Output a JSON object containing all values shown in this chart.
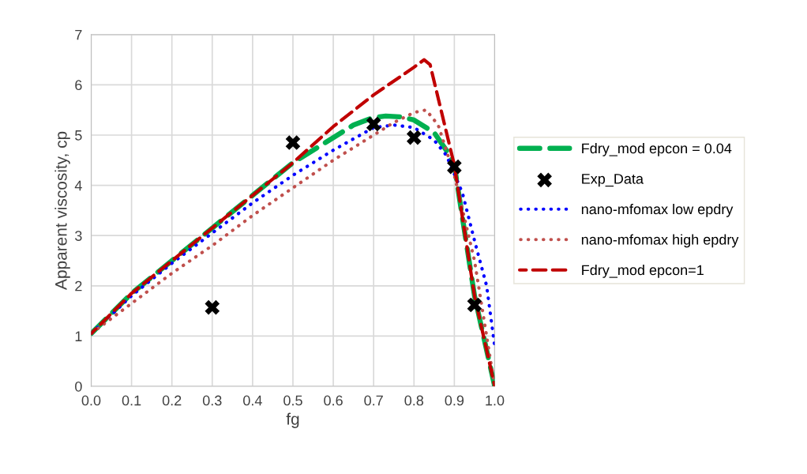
{
  "chart_data": {
    "type": "line",
    "xlabel": "fg",
    "ylabel": "Apparent viscosity, cp",
    "xlim": [
      0,
      1
    ],
    "ylim": [
      0,
      7
    ],
    "xticks": [
      {
        "value": 0,
        "label": "0.0"
      },
      {
        "value": 0.1,
        "label": "0.1"
      },
      {
        "value": 0.2,
        "label": "0.2"
      },
      {
        "value": 0.3,
        "label": "0.3"
      },
      {
        "value": 0.4,
        "label": "0.4"
      },
      {
        "value": 0.5,
        "label": "0.5"
      },
      {
        "value": 0.6,
        "label": "0.6"
      },
      {
        "value": 0.7,
        "label": "0.7"
      },
      {
        "value": 0.8,
        "label": "0.8"
      },
      {
        "value": 0.9,
        "label": "0.9"
      },
      {
        "value": 1,
        "label": "1.0"
      }
    ],
    "yticks": [
      0,
      1,
      2,
      3,
      4,
      5,
      6,
      7
    ],
    "grid": true,
    "legend": "right",
    "series": [
      {
        "name": "Fdry_mod epcon = 0.04",
        "color": "#00b050",
        "line_style": "dashed",
        "marker": "none",
        "x": [
          0,
          0.1,
          0.2,
          0.3,
          0.4,
          0.5,
          0.6,
          0.65,
          0.7,
          0.73,
          0.77,
          0.8,
          0.85,
          0.88,
          0.9,
          0.95,
          1.0
        ],
        "values": [
          1.05,
          1.85,
          2.5,
          3.15,
          3.8,
          4.45,
          4.95,
          5.2,
          5.35,
          5.38,
          5.36,
          5.3,
          5.05,
          4.7,
          4.4,
          1.8,
          0
        ]
      },
      {
        "name": "Exp_Data",
        "type": "scatter",
        "color": "#000000",
        "marker": "cross",
        "x": [
          0.3,
          0.5,
          0.7,
          0.8,
          0.9,
          0.95
        ],
        "values": [
          1.57,
          4.85,
          5.22,
          4.95,
          4.37,
          1.62
        ]
      },
      {
        "name": "nano-mfomax low epdry",
        "color": "#0000ff",
        "line_style": "dotted",
        "marker": "none",
        "x": [
          0,
          0.1,
          0.2,
          0.3,
          0.4,
          0.5,
          0.6,
          0.7,
          0.75,
          0.8,
          0.85,
          0.88,
          0.92,
          0.95,
          0.98,
          1.0
        ],
        "values": [
          1.05,
          1.8,
          2.45,
          3.05,
          3.65,
          4.2,
          4.7,
          5.15,
          5.2,
          5.15,
          4.9,
          4.6,
          3.85,
          2.9,
          2.0,
          0.8
        ]
      },
      {
        "name": "nano-mfomax high epdry",
        "color": "#c0504d",
        "line_style": "dotted",
        "marker": "none",
        "x": [
          0,
          0.1,
          0.2,
          0.3,
          0.4,
          0.5,
          0.6,
          0.7,
          0.75,
          0.8,
          0.83,
          0.86,
          0.9,
          0.95,
          1.0
        ],
        "values": [
          1.05,
          1.65,
          2.25,
          2.8,
          3.4,
          3.95,
          4.5,
          5.0,
          5.25,
          5.45,
          5.5,
          5.2,
          4.2,
          2.5,
          0
        ]
      },
      {
        "name": "Fdry_mod epcon=1",
        "color": "#c00000",
        "line_style": "dashed",
        "marker": "none",
        "x": [
          0,
          0.1,
          0.2,
          0.3,
          0.4,
          0.5,
          0.6,
          0.7,
          0.8,
          0.825,
          0.84,
          0.9,
          0.95,
          1.0
        ],
        "values": [
          1.05,
          1.85,
          2.5,
          3.15,
          3.8,
          4.45,
          5.17,
          5.8,
          6.35,
          6.5,
          6.4,
          4.4,
          1.8,
          0
        ]
      }
    ]
  }
}
